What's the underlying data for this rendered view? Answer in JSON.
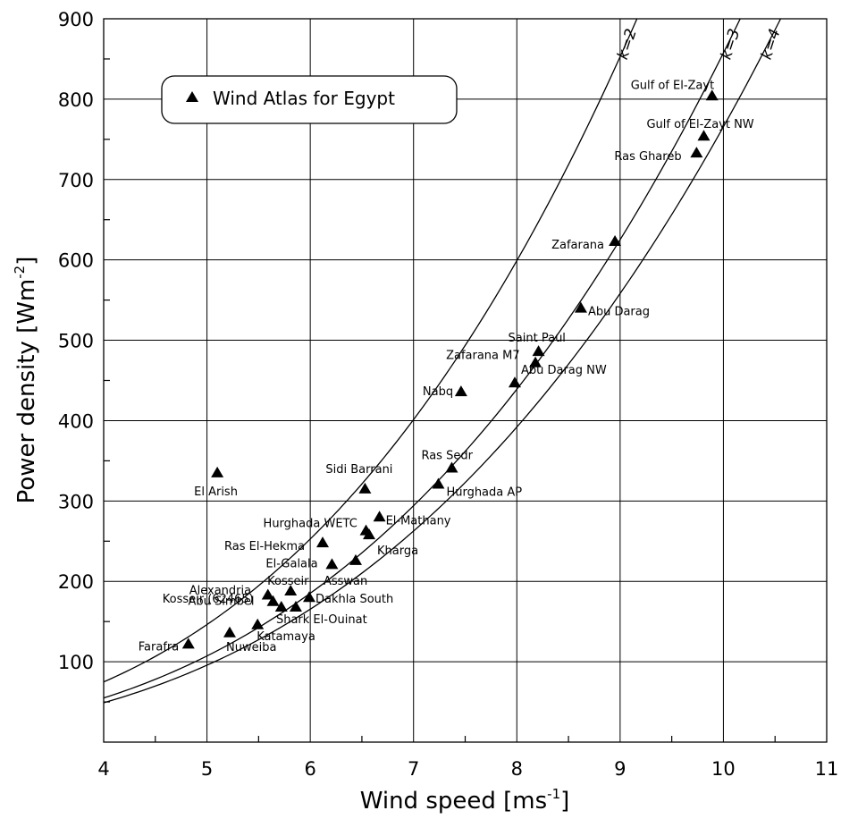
{
  "chart_data": {
    "type": "scatter",
    "xlabel": "Wind speed [ms",
    "xlabel_sup": "-1",
    "xlabel_end": "]",
    "ylabel": "Power density [Wm",
    "ylabel_sup": "-2",
    "ylabel_end": "]",
    "xlim": [
      4,
      11
    ],
    "ylim": [
      0,
      900
    ],
    "x_ticks": [
      4,
      5,
      6,
      7,
      8,
      9,
      10,
      11
    ],
    "y_ticks": [
      100,
      200,
      300,
      400,
      500,
      600,
      700,
      800,
      900
    ],
    "grid": true,
    "legend": {
      "label": "Wind Atlas for Egypt",
      "position": "top-left"
    },
    "series": [
      {
        "name": "Wind Atlas for Egypt",
        "points": [
          {
            "label": "Farafra",
            "x": 4.82,
            "y": 122
          },
          {
            "label": "Nuweiba",
            "x": 5.22,
            "y": 136
          },
          {
            "label": "El Arish",
            "x": 5.1,
            "y": 335
          },
          {
            "label": "Katamaya",
            "x": 5.49,
            "y": 146
          },
          {
            "label": "Kosseir (62465)",
            "x": 5.72,
            "y": 168
          },
          {
            "label": "Abu Simbel",
            "x": 5.64,
            "y": 175
          },
          {
            "label": "Alexandria",
            "x": 5.59,
            "y": 183
          },
          {
            "label": "Kosseir",
            "x": 5.81,
            "y": 188
          },
          {
            "label": "Shark El-Ouinat",
            "x": 5.86,
            "y": 168
          },
          {
            "label": "Dakhla South",
            "x": 5.99,
            "y": 180
          },
          {
            "label": "El-Galala",
            "x": 6.21,
            "y": 221
          },
          {
            "label": "Asswan",
            "x": 6.44,
            "y": 226
          },
          {
            "label": "Ras El-Hekma",
            "x": 6.12,
            "y": 248
          },
          {
            "label": "Hurghada WETC",
            "x": 6.54,
            "y": 263
          },
          {
            "label": "Kharga",
            "x": 6.57,
            "y": 258
          },
          {
            "label": "El-Mathany",
            "x": 6.67,
            "y": 280
          },
          {
            "label": "Sidi Barrani",
            "x": 6.53,
            "y": 315
          },
          {
            "label": "Hurghada AP",
            "x": 7.24,
            "y": 321
          },
          {
            "label": "Ras Sedr",
            "x": 7.37,
            "y": 341
          },
          {
            "label": "Nabq",
            "x": 7.46,
            "y": 436
          },
          {
            "label": "Abu Darag NW",
            "x": 7.98,
            "y": 447
          },
          {
            "label": "Zafarana M7",
            "x": 8.18,
            "y": 472
          },
          {
            "label": "Saint Paul",
            "x": 8.21,
            "y": 486
          },
          {
            "label": "Abu Darag",
            "x": 8.62,
            "y": 540
          },
          {
            "label": "Zafarana",
            "x": 8.95,
            "y": 623
          },
          {
            "label": "Ras Ghareb",
            "x": 9.74,
            "y": 733
          },
          {
            "label": "Gulf of El-Zayt NW",
            "x": 9.81,
            "y": 754
          },
          {
            "label": "Gulf of El-Zayt",
            "x": 9.89,
            "y": 804
          }
        ]
      }
    ],
    "curves": [
      {
        "label": "k=2"
      },
      {
        "label": "k=3"
      },
      {
        "label": "k=4"
      }
    ]
  }
}
